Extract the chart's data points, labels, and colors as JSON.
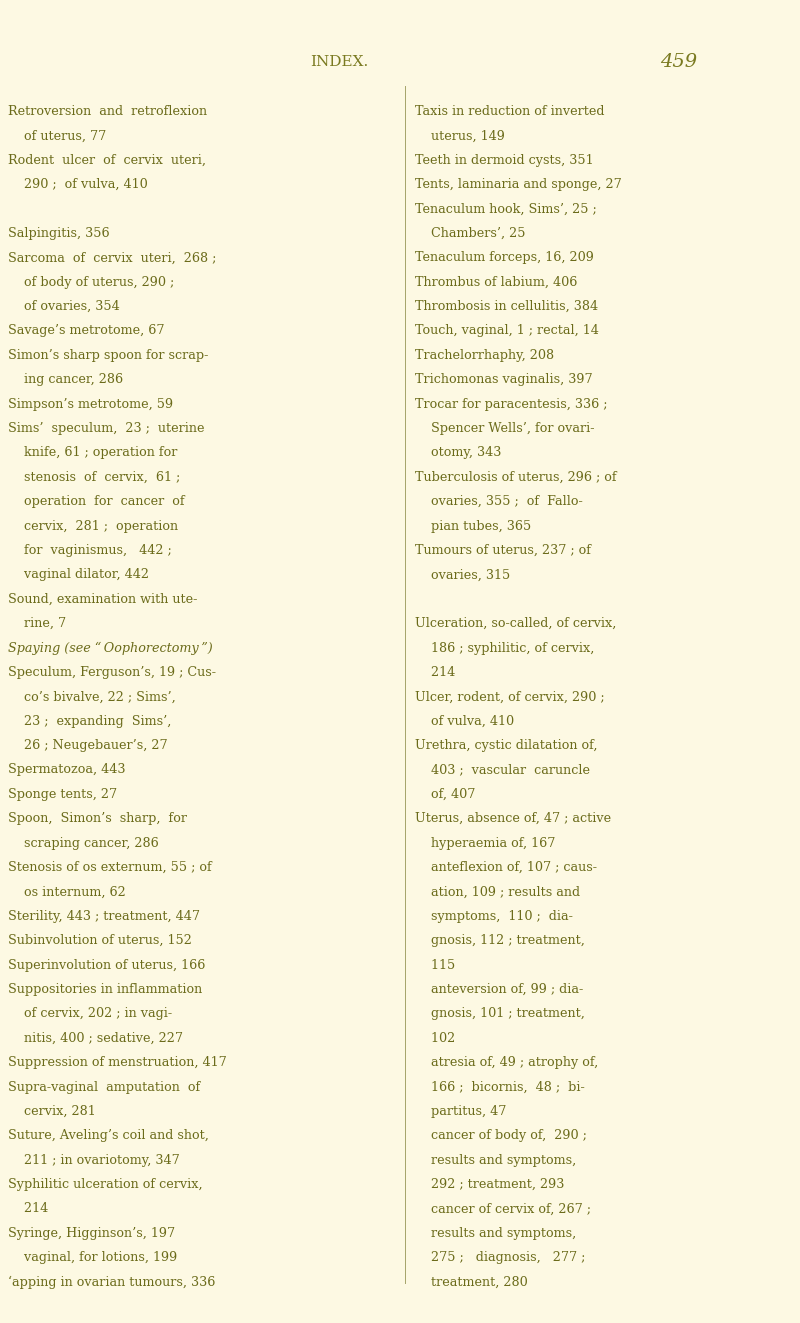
{
  "bg_color": "#fdf9e3",
  "text_color": "#6b6b1a",
  "header_color": "#7a7a20",
  "page_width": 8.0,
  "page_height": 13.23,
  "dpi": 100,
  "header_text": "INDEX.",
  "page_number": "459",
  "left_col_lines": [
    [
      "Retroversion  and  retroflexion",
      false
    ],
    [
      "    of uterus, 77",
      false
    ],
    [
      "Rodent  ulcer  of  cervix  uteri,",
      false
    ],
    [
      "    290 ;  of vulva, 410",
      false
    ],
    [
      "",
      false
    ],
    [
      "Salpingitis, 356",
      false
    ],
    [
      "Sarcoma  of  cervix  uteri,  268 ;",
      false
    ],
    [
      "    of body of uterus, 290 ;",
      false
    ],
    [
      "    of ovaries, 354",
      false
    ],
    [
      "Savage’s metrotome, 67",
      false
    ],
    [
      "Simon’s sharp spoon for scrap-",
      false
    ],
    [
      "    ing cancer, 286",
      false
    ],
    [
      "Simpson’s metrotome, 59",
      false
    ],
    [
      "Sims’  speculum,  23 ;  uterine",
      false
    ],
    [
      "    knife, 61 ; operation for",
      false
    ],
    [
      "    stenosis  of  cervix,  61 ;",
      false
    ],
    [
      "    operation  for  cancer  of",
      false
    ],
    [
      "    cervix,  281 ;  operation",
      false
    ],
    [
      "    for  vaginismus,   442 ;",
      false
    ],
    [
      "    vaginal dilator, 442",
      false
    ],
    [
      "Sound, examination with ute-",
      false
    ],
    [
      "    rine, 7",
      false
    ],
    [
      "Spaying (see “ Oophorectomy ”)",
      true
    ],
    [
      "Speculum, Ferguson’s, 19 ; Cus-",
      false
    ],
    [
      "    co’s bivalve, 22 ; Sims’,",
      false
    ],
    [
      "    23 ;  expanding  Sims’,",
      false
    ],
    [
      "    26 ; Neugebauer’s, 27",
      false
    ],
    [
      "Spermatozoa, 443",
      false
    ],
    [
      "Sponge tents, 27",
      false
    ],
    [
      "Spoon,  Simon’s  sharp,  for",
      false
    ],
    [
      "    scraping cancer, 286",
      false
    ],
    [
      "Stenosis of os externum, 55 ; of",
      false
    ],
    [
      "    os internum, 62",
      false
    ],
    [
      "Sterility, 443 ; treatment, 447",
      false
    ],
    [
      "Subinvolution of uterus, 152",
      false
    ],
    [
      "Superinvolution of uterus, 166",
      false
    ],
    [
      "Suppositories in inflammation",
      false
    ],
    [
      "    of cervix, 202 ; in vagi-",
      false
    ],
    [
      "    nitis, 400 ; sedative, 227",
      false
    ],
    [
      "Suppression of menstruation, 417",
      false
    ],
    [
      "Supra-vaginal  amputation  of",
      false
    ],
    [
      "    cervix, 281",
      false
    ],
    [
      "Suture, Aveling’s coil and shot,",
      false
    ],
    [
      "    211 ; in ovariotomy, 347",
      false
    ],
    [
      "Syphilitic ulceration of cervix,",
      false
    ],
    [
      "    214",
      false
    ],
    [
      "Syringe, Higginson’s, 197",
      false
    ],
    [
      "    vaginal, for lotions, 199",
      false
    ],
    [
      "‘apping in ovarian tumours, 336",
      false
    ]
  ],
  "right_col_lines": [
    [
      "Taxis in reduction of inverted",
      false
    ],
    [
      "    uterus, 149",
      false
    ],
    [
      "Teeth in dermoid cysts, 351",
      false
    ],
    [
      "Tents, laminaria and sponge, 27",
      false
    ],
    [
      "Tenaculum hook, Sims’, 25 ;",
      false
    ],
    [
      "    Chambers’, 25",
      false
    ],
    [
      "Tenaculum forceps, 16, 209",
      false
    ],
    [
      "Thrombus of labium, 406",
      false
    ],
    [
      "Thrombosis in cellulitis, 384",
      false
    ],
    [
      "Touch, vaginal, 1 ; rectal, 14",
      false
    ],
    [
      "Trachelorrhaphy, 208",
      false
    ],
    [
      "Trichomonas vaginalis, 397",
      false
    ],
    [
      "Trocar for paracentesis, 336 ;",
      false
    ],
    [
      "    Spencer Wells’, for ovari-",
      false
    ],
    [
      "    otomy, 343",
      false
    ],
    [
      "Tuberculosis of uterus, 296 ; of",
      false
    ],
    [
      "    ovaries, 355 ;  of  Fallo-",
      false
    ],
    [
      "    pian tubes, 365",
      false
    ],
    [
      "Tumours of uterus, 237 ; of",
      false
    ],
    [
      "    ovaries, 315",
      false
    ],
    [
      "",
      false
    ],
    [
      "Ulceration, so-called, of cervix,",
      false
    ],
    [
      "    186 ; syphilitic, of cervix,",
      false
    ],
    [
      "    214",
      false
    ],
    [
      "Ulcer, rodent, of cervix, 290 ;",
      false
    ],
    [
      "    of vulva, 410",
      false
    ],
    [
      "Urethra, cystic dilatation of,",
      false
    ],
    [
      "    403 ;  vascular  caruncle",
      false
    ],
    [
      "    of, 407",
      false
    ],
    [
      "Uterus, absence of, 47 ; active",
      false
    ],
    [
      "    hyperaemia of, 167",
      false
    ],
    [
      "    anteflexion of, 107 ; caus-",
      false
    ],
    [
      "    ation, 109 ; results and",
      false
    ],
    [
      "    symptoms,  110 ;  dia-",
      false
    ],
    [
      "    gnosis, 112 ; treatment,",
      false
    ],
    [
      "    115",
      false
    ],
    [
      "    anteversion of, 99 ; dia-",
      false
    ],
    [
      "    gnosis, 101 ; treatment,",
      false
    ],
    [
      "    102",
      false
    ],
    [
      "    atresia of, 49 ; atrophy of,",
      false
    ],
    [
      "    166 ;  bicornis,  48 ;  bi-",
      false
    ],
    [
      "    partitus, 47",
      false
    ],
    [
      "    cancer of body of,  290 ;",
      false
    ],
    [
      "    results and symptoms,",
      false
    ],
    [
      "    292 ; treatment, 293",
      false
    ],
    [
      "    cancer of cervix of, 267 ;",
      false
    ],
    [
      "    results and symptoms,",
      false
    ],
    [
      "    275 ;   diagnosis,   277 ;",
      false
    ],
    [
      "    treatment, 280",
      false
    ]
  ]
}
